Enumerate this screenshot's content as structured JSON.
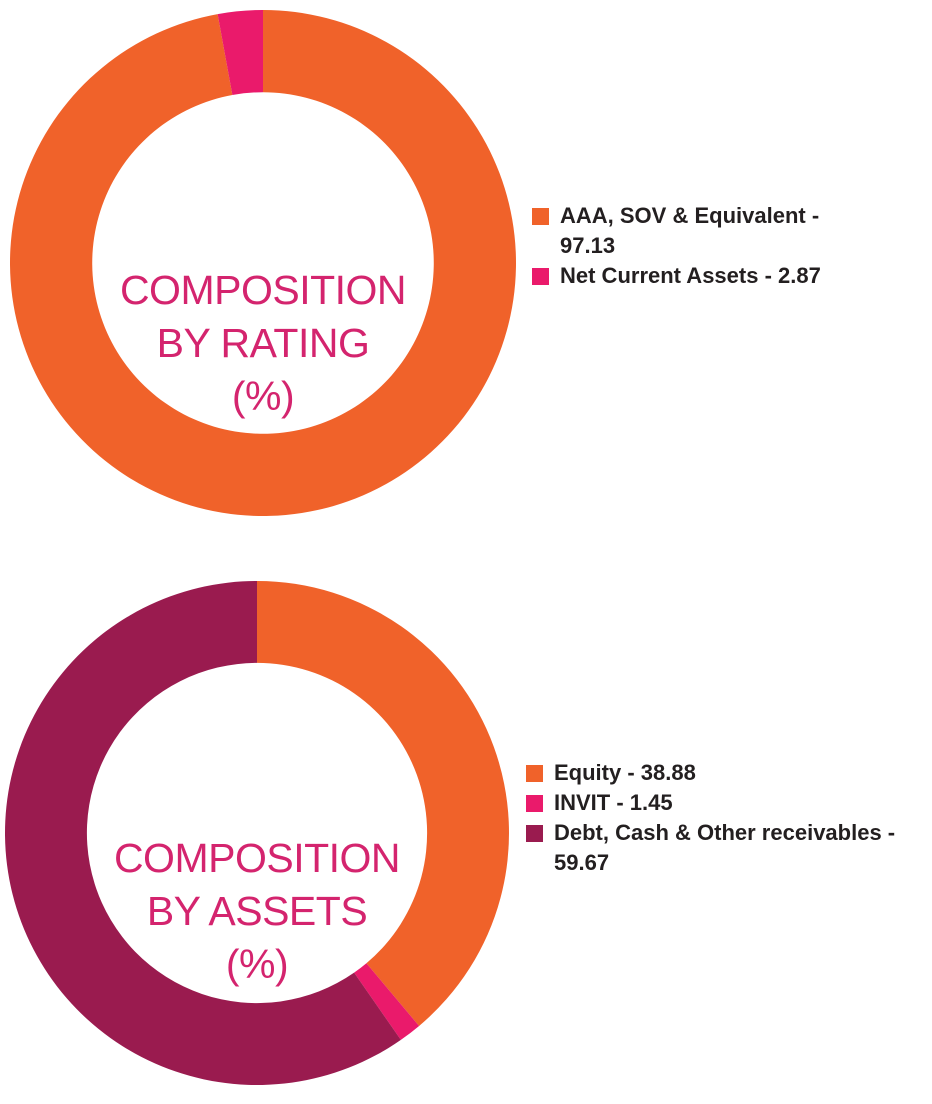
{
  "colors": {
    "orange": "#f0622a",
    "pink": "#ea1a6b",
    "maroon": "#9a1b4f",
    "title": "#d4246e",
    "legend_text": "#231f20"
  },
  "chart_data": [
    {
      "type": "pie",
      "style": "donut",
      "title_lines": [
        "COMPOSITION",
        "BY RATING",
        "(%)"
      ],
      "slices": [
        {
          "label": "AAA, SOV & Equivalent",
          "value": 97.13,
          "color": "#f0622a"
        },
        {
          "label": "Net Current Assets",
          "value": 2.87,
          "color": "#ea1a6b"
        }
      ],
      "legend": [
        {
          "text": "AAA, SOV & Equivalent - 97.13",
          "color": "#f0622a"
        },
        {
          "text": "Net Current Assets - 2.87",
          "color": "#ea1a6b"
        }
      ],
      "legend_position": "right"
    },
    {
      "type": "pie",
      "style": "donut",
      "title_lines": [
        "COMPOSITION",
        "BY ASSETS",
        "(%)"
      ],
      "slices": [
        {
          "label": "Equity",
          "value": 38.88,
          "color": "#f0622a"
        },
        {
          "label": "INVIT",
          "value": 1.45,
          "color": "#ea1a6b"
        },
        {
          "label": "Debt, Cash & Other receivables",
          "value": 59.67,
          "color": "#9a1b4f"
        }
      ],
      "legend": [
        {
          "text": "Equity - 38.88",
          "color": "#f0622a"
        },
        {
          "text": "INVIT - 1.45",
          "color": "#ea1a6b"
        },
        {
          "text": "Debt, Cash & Other receivables - 59.67",
          "color": "#9a1b4f"
        }
      ],
      "legend_position": "right"
    }
  ]
}
